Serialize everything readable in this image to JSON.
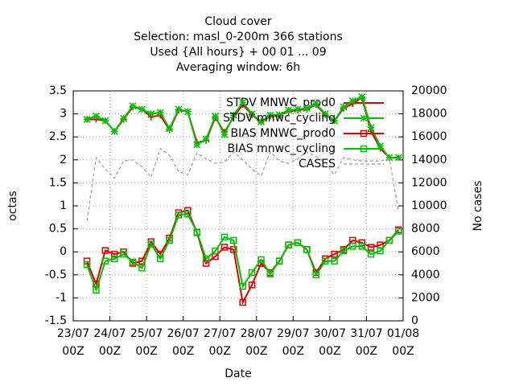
{
  "chart_data": {
    "type": "line",
    "title": [
      "Cloud cover",
      "Selection: masl_0-200m    366 stations",
      "Used {All hours} + 00 01 ... 09",
      "Averaging window:  6h"
    ],
    "xlabel": "Date",
    "ylabel": "octas",
    "y2label": "No cases",
    "x": [
      9,
      15,
      21,
      27,
      33,
      39,
      45,
      51,
      57,
      63,
      69,
      75,
      81,
      87,
      93,
      99,
      105,
      111,
      117,
      123,
      129,
      135,
      141,
      147,
      153,
      159,
      165,
      171,
      177,
      183,
      189,
      195,
      201,
      207,
      213
    ],
    "xlim": [
      0,
      216
    ],
    "xticks": [
      {
        "value": 0,
        "label": "23/07\n00Z"
      },
      {
        "value": 24,
        "label": "24/07\n00Z"
      },
      {
        "value": 48,
        "label": "25/07\n00Z"
      },
      {
        "value": 72,
        "label": "26/07\n00Z"
      },
      {
        "value": 96,
        "label": "27/07\n00Z"
      },
      {
        "value": 120,
        "label": "28/07\n00Z"
      },
      {
        "value": 144,
        "label": "29/07\n00Z"
      },
      {
        "value": 168,
        "label": "30/07\n00Z"
      },
      {
        "value": 192,
        "label": "31/07\n00Z"
      },
      {
        "value": 216,
        "label": "01/08\n00Z"
      }
    ],
    "ylim": [
      -1.5,
      3.5
    ],
    "yticks": [
      -1.5,
      -1,
      -0.5,
      0,
      0.5,
      1,
      1.5,
      2,
      2.5,
      3,
      3.5
    ],
    "y2lim": [
      0,
      20000
    ],
    "y2ticks": [
      0,
      2000,
      4000,
      6000,
      8000,
      10000,
      12000,
      14000,
      16000,
      18000,
      20000
    ],
    "grid": true,
    "legend": "top-right",
    "series": [
      {
        "name": "STDV MNWC_prod0",
        "color": "#e00000",
        "marker": "plus",
        "values": [
          2.88,
          2.88,
          2.85,
          2.62,
          2.88,
          3.15,
          3.1,
          2.93,
          2.97,
          2.65,
          3.08,
          3.05,
          2.38,
          2.42,
          2.92,
          2.6,
          2.93,
          3.2,
          2.98,
          2.82,
          2.95,
          2.97,
          3.05,
          3.08,
          3.1,
          3.2,
          2.98,
          2.85,
          3.12,
          3.22,
          3.35,
          2.62,
          2.25,
          2.05,
          2.05
        ]
      },
      {
        "name": "STDV mnwc_cycling",
        "color": "#00c000",
        "marker": "star",
        "values": [
          2.88,
          2.95,
          2.85,
          2.62,
          2.9,
          3.17,
          3.1,
          3.0,
          3.03,
          2.68,
          3.1,
          3.05,
          2.33,
          2.45,
          2.95,
          2.55,
          2.97,
          3.25,
          3.0,
          2.83,
          2.97,
          2.98,
          3.08,
          3.1,
          3.12,
          3.22,
          3.0,
          2.85,
          3.15,
          3.28,
          3.37,
          2.7,
          2.3,
          2.05,
          2.05
        ]
      },
      {
        "name": "BIAS MNWC_prod0",
        "color": "#e00000",
        "marker": "square",
        "values": [
          -0.2,
          -0.7,
          0.03,
          -0.05,
          0.0,
          -0.25,
          -0.2,
          0.22,
          -0.05,
          0.3,
          0.85,
          0.9,
          0.42,
          -0.25,
          -0.1,
          0.1,
          0.05,
          -1.1,
          -0.72,
          -0.25,
          -0.45,
          -0.2,
          0.15,
          0.2,
          0.05,
          -0.45,
          -0.15,
          -0.05,
          0.05,
          0.25,
          0.2,
          0.1,
          0.15,
          0.25,
          0.48
        ]
      },
      {
        "name": "BIAS mnwc_cycling",
        "color": "#00c000",
        "marker": "square",
        "values": [
          -0.28,
          -0.83,
          -0.2,
          -0.15,
          -0.05,
          -0.22,
          -0.35,
          0.17,
          -0.15,
          0.25,
          0.8,
          0.82,
          0.43,
          -0.15,
          0.02,
          0.32,
          0.25,
          -0.75,
          -0.45,
          -0.17,
          -0.48,
          -0.2,
          0.15,
          0.2,
          0.05,
          -0.5,
          -0.2,
          -0.2,
          0.02,
          0.12,
          0.12,
          -0.05,
          0.02,
          0.25,
          0.45
        ]
      },
      {
        "name": "CASES",
        "color": "#a0a0a0",
        "marker": "none",
        "dashed": true,
        "axis": "y2",
        "values": [
          8700,
          14200,
          13200,
          12400,
          13900,
          14000,
          13400,
          12500,
          15000,
          14400,
          13000,
          12700,
          14600,
          14100,
          13700,
          13800,
          14700,
          14000,
          13200,
          12600,
          14700,
          13900,
          13700,
          14100,
          14700,
          14300,
          13800,
          12700,
          14200,
          14000,
          13900,
          13900,
          13900,
          14100,
          9500
        ]
      }
    ]
  }
}
